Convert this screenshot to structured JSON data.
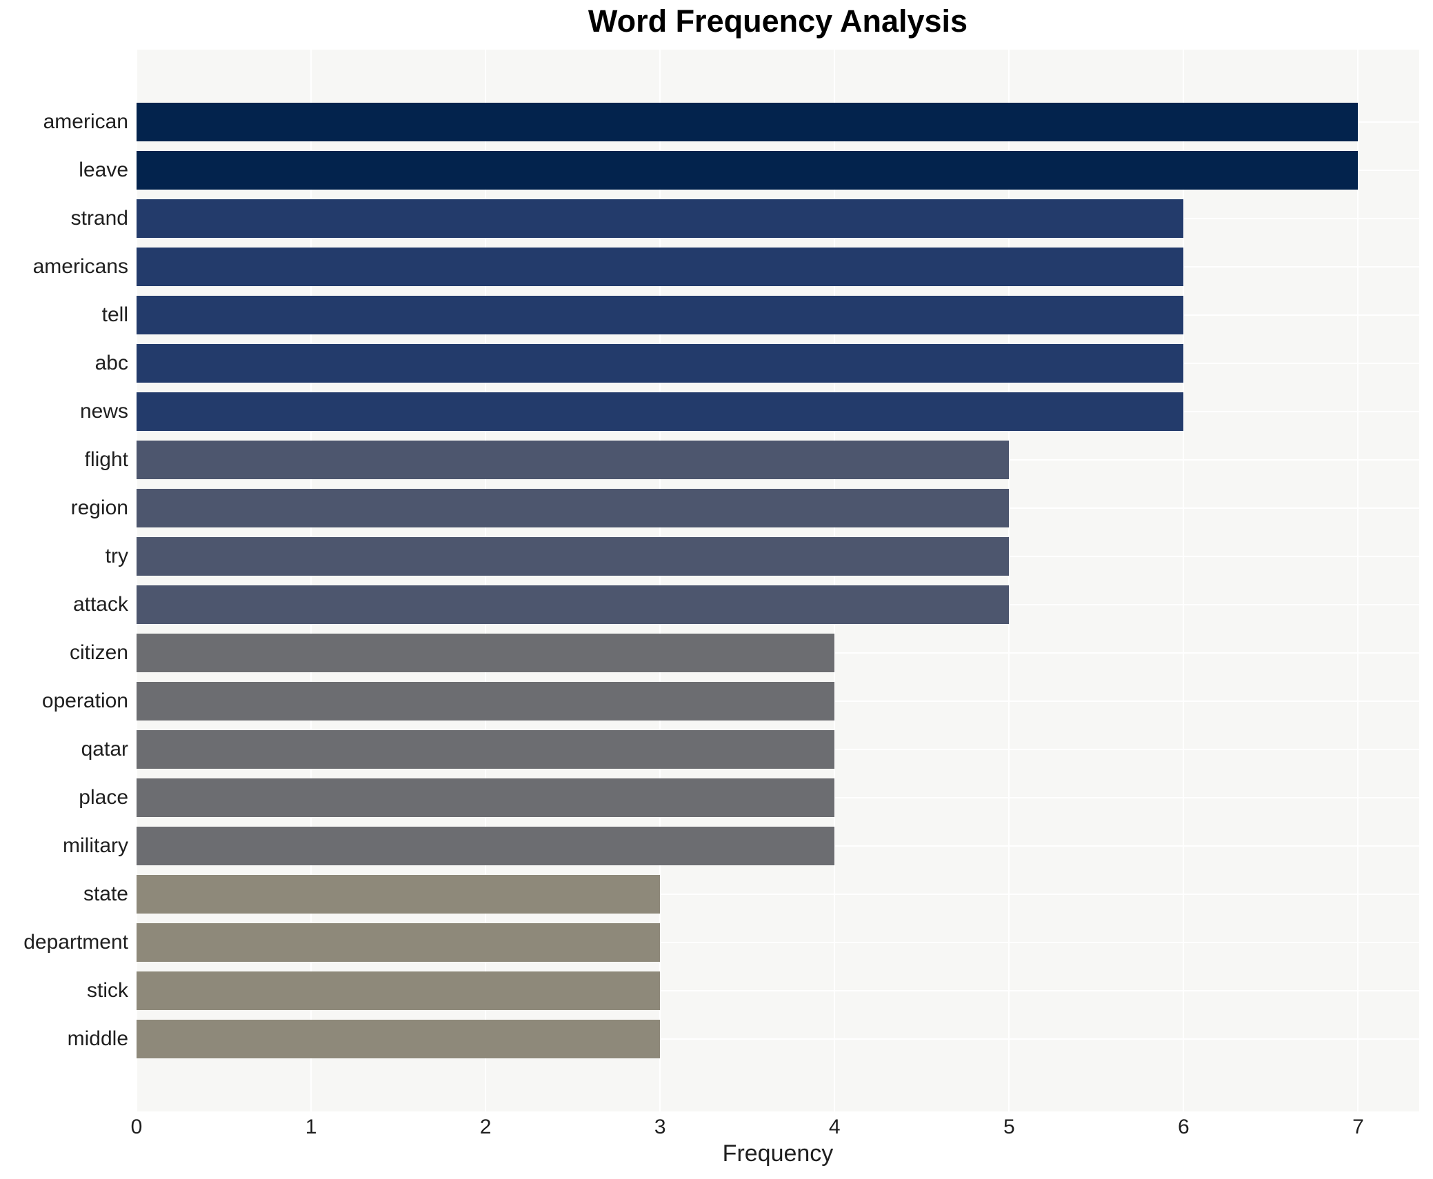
{
  "chart_data": {
    "type": "bar",
    "orientation": "horizontal",
    "title": "Word Frequency Analysis",
    "xlabel": "Frequency",
    "ylabel": "",
    "categories": [
      "american",
      "leave",
      "strand",
      "americans",
      "tell",
      "abc",
      "news",
      "flight",
      "region",
      "try",
      "attack",
      "citizen",
      "operation",
      "qatar",
      "place",
      "military",
      "state",
      "department",
      "stick",
      "middle"
    ],
    "values": [
      7,
      7,
      6,
      6,
      6,
      6,
      6,
      5,
      5,
      5,
      5,
      4,
      4,
      4,
      4,
      4,
      3,
      3,
      3,
      3
    ],
    "xticks": [
      0,
      1,
      2,
      3,
      4,
      5,
      6,
      7
    ],
    "xlim": [
      0,
      7.35
    ],
    "grid": true,
    "legend_position": "none",
    "colors": {
      "figure_background": "#ffffff",
      "plot_background": "#f7f7f5",
      "gridline": "#ffffff",
      "title_text": "#000000",
      "axis_text": "#1f1f1f",
      "bars_by_value": {
        "7": "#03234d",
        "6": "#233b6b",
        "5": "#4d566e",
        "4": "#6c6d71",
        "3": "#8e897a"
      }
    }
  }
}
